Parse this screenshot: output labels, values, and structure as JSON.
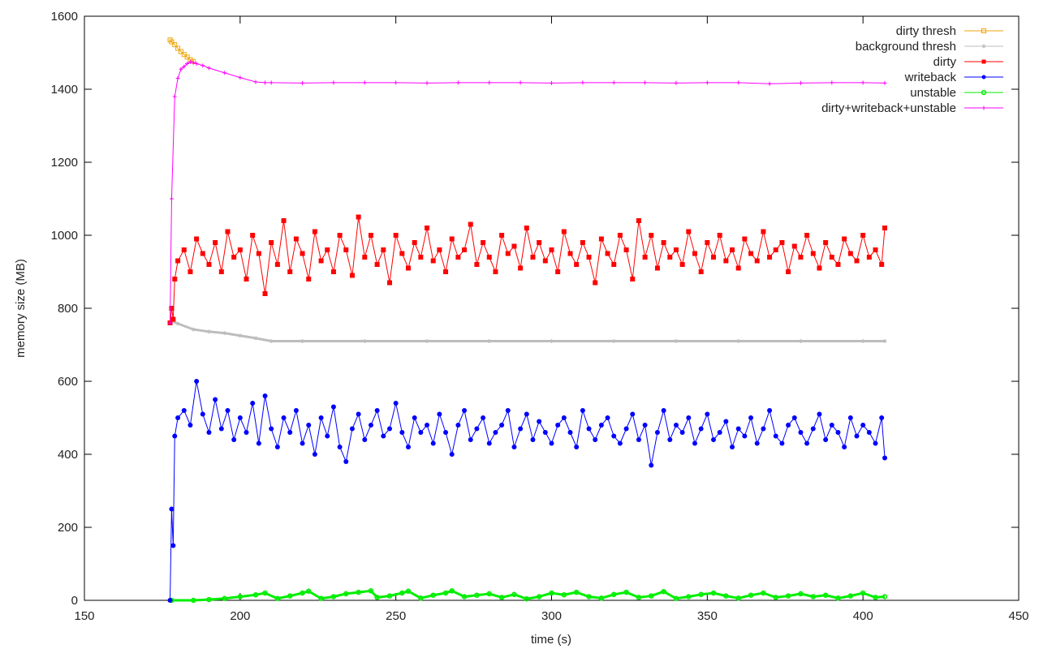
{
  "chart_data": {
    "type": "line",
    "title": "",
    "xlabel": "time (s)",
    "ylabel": "memory size (MB)",
    "xlim": [
      150,
      450
    ],
    "ylim": [
      0,
      1600
    ],
    "xticks": [
      150,
      200,
      250,
      300,
      350,
      400,
      450
    ],
    "yticks": [
      0,
      200,
      400,
      600,
      800,
      1000,
      1200,
      1400,
      1600
    ],
    "grid": false,
    "legend_position": "top-right",
    "series": [
      {
        "name": "dirty thresh",
        "color": "#f0a30a",
        "marker": "square-open",
        "x": [
          177.5,
          178,
          179,
          180,
          181,
          182,
          183,
          184,
          185
        ],
        "y": [
          1535,
          1530,
          1522,
          1512,
          1503,
          1495,
          1488,
          1481,
          1476
        ]
      },
      {
        "name": "background thresh",
        "color": "#bdbdbd",
        "marker": "asterisk",
        "x": [
          178,
          180,
          185,
          190,
          195,
          200,
          205,
          210,
          220,
          240,
          260,
          280,
          300,
          320,
          340,
          360,
          380,
          400,
          407
        ],
        "y": [
          765,
          758,
          742,
          736,
          732,
          725,
          718,
          710,
          710,
          710,
          710,
          710,
          710,
          710,
          710,
          710,
          710,
          710,
          710
        ]
      },
      {
        "name": "dirty",
        "color": "#ff0000",
        "marker": "square-filled",
        "x": [
          177.5,
          178,
          178.5,
          179,
          180,
          182,
          184,
          186,
          188,
          190,
          192,
          194,
          196,
          198,
          200,
          202,
          204,
          206,
          208,
          210,
          212,
          214,
          216,
          218,
          220,
          222,
          224,
          226,
          228,
          230,
          232,
          234,
          236,
          238,
          240,
          242,
          244,
          246,
          248,
          250,
          252,
          254,
          256,
          258,
          260,
          262,
          264,
          266,
          268,
          270,
          272,
          274,
          276,
          278,
          280,
          282,
          284,
          286,
          288,
          290,
          292,
          294,
          296,
          298,
          300,
          302,
          304,
          306,
          308,
          310,
          312,
          314,
          316,
          318,
          320,
          322,
          324,
          326,
          328,
          330,
          332,
          334,
          336,
          338,
          340,
          342,
          344,
          346,
          348,
          350,
          352,
          354,
          356,
          358,
          360,
          362,
          364,
          366,
          368,
          370,
          372,
          374,
          376,
          378,
          380,
          382,
          384,
          386,
          388,
          390,
          392,
          394,
          396,
          398,
          400,
          402,
          404,
          406,
          407
        ],
        "y": [
          760,
          800,
          770,
          880,
          930,
          960,
          900,
          990,
          950,
          920,
          980,
          900,
          1010,
          940,
          960,
          880,
          1000,
          950,
          840,
          980,
          920,
          1040,
          900,
          990,
          950,
          880,
          1010,
          930,
          960,
          900,
          1000,
          960,
          890,
          1050,
          940,
          1000,
          920,
          960,
          870,
          1000,
          950,
          910,
          980,
          940,
          1020,
          930,
          960,
          900,
          990,
          940,
          960,
          1030,
          920,
          980,
          940,
          900,
          1000,
          950,
          970,
          910,
          1020,
          940,
          980,
          930,
          960,
          900,
          1010,
          950,
          920,
          980,
          940,
          870,
          990,
          950,
          920,
          1000,
          960,
          880,
          1040,
          940,
          1000,
          910,
          980,
          940,
          960,
          920,
          1010,
          950,
          900,
          980,
          940,
          1000,
          930,
          960,
          910,
          990,
          950,
          930,
          1010,
          940,
          960,
          980,
          900,
          970,
          940,
          1000,
          950,
          910,
          980,
          940,
          920,
          990,
          950,
          930,
          1000,
          940,
          960,
          920,
          1020
        ]
      },
      {
        "name": "writeback",
        "color": "#0000ff",
        "marker": "circle-filled",
        "x": [
          177.5,
          178,
          178.5,
          179,
          180,
          182,
          184,
          186,
          188,
          190,
          192,
          194,
          196,
          198,
          200,
          202,
          204,
          206,
          208,
          210,
          212,
          214,
          216,
          218,
          220,
          222,
          224,
          226,
          228,
          230,
          232,
          234,
          236,
          238,
          240,
          242,
          244,
          246,
          248,
          250,
          252,
          254,
          256,
          258,
          260,
          262,
          264,
          266,
          268,
          270,
          272,
          274,
          276,
          278,
          280,
          282,
          284,
          286,
          288,
          290,
          292,
          294,
          296,
          298,
          300,
          302,
          304,
          306,
          308,
          310,
          312,
          314,
          316,
          318,
          320,
          322,
          324,
          326,
          328,
          330,
          332,
          334,
          336,
          338,
          340,
          342,
          344,
          346,
          348,
          350,
          352,
          354,
          356,
          358,
          360,
          362,
          364,
          366,
          368,
          370,
          372,
          374,
          376,
          378,
          380,
          382,
          384,
          386,
          388,
          390,
          392,
          394,
          396,
          398,
          400,
          402,
          404,
          406,
          407
        ],
        "y": [
          0,
          250,
          150,
          450,
          500,
          520,
          480,
          600,
          510,
          460,
          550,
          470,
          520,
          440,
          500,
          460,
          540,
          430,
          560,
          470,
          420,
          500,
          460,
          520,
          430,
          480,
          400,
          500,
          450,
          530,
          420,
          380,
          470,
          510,
          440,
          480,
          520,
          450,
          470,
          540,
          460,
          420,
          500,
          460,
          480,
          430,
          510,
          460,
          400,
          480,
          520,
          440,
          470,
          500,
          430,
          460,
          480,
          520,
          420,
          470,
          510,
          440,
          490,
          460,
          430,
          480,
          500,
          460,
          420,
          520,
          470,
          440,
          480,
          500,
          450,
          430,
          470,
          510,
          440,
          480,
          370,
          460,
          520,
          440,
          480,
          460,
          500,
          430,
          470,
          510,
          440,
          460,
          490,
          420,
          470,
          450,
          500,
          430,
          470,
          520,
          450,
          430,
          480,
          500,
          460,
          430,
          470,
          510,
          440,
          480,
          460,
          420,
          500,
          450,
          480,
          460,
          430,
          500,
          390
        ]
      },
      {
        "name": "unstable",
        "color": "#00ee00",
        "marker": "circle-open",
        "x": [
          178,
          185,
          190,
          195,
          200,
          205,
          208,
          212,
          216,
          220,
          222,
          226,
          230,
          234,
          238,
          242,
          244,
          248,
          252,
          254,
          258,
          262,
          266,
          268,
          272,
          276,
          280,
          284,
          288,
          292,
          296,
          300,
          304,
          308,
          312,
          316,
          320,
          324,
          328,
          332,
          336,
          340,
          344,
          348,
          352,
          356,
          360,
          364,
          368,
          372,
          376,
          380,
          384,
          388,
          392,
          396,
          400,
          404,
          407
        ],
        "y": [
          0,
          0,
          2,
          5,
          10,
          15,
          20,
          5,
          12,
          20,
          25,
          5,
          10,
          18,
          22,
          26,
          8,
          12,
          20,
          25,
          6,
          14,
          20,
          26,
          10,
          14,
          18,
          8,
          16,
          4,
          10,
          20,
          15,
          22,
          10,
          6,
          16,
          22,
          8,
          12,
          24,
          5,
          10,
          16,
          20,
          12,
          6,
          14,
          20,
          8,
          12,
          18,
          10,
          14,
          6,
          12,
          20,
          8,
          10
        ]
      },
      {
        "name": "dirty+writeback+unstable",
        "color": "#ff00ff",
        "marker": "plus",
        "x": [
          177.5,
          178,
          179,
          180,
          181,
          182,
          183,
          184,
          185,
          186,
          188,
          190,
          195,
          200,
          205,
          208,
          210,
          220,
          230,
          240,
          250,
          260,
          270,
          280,
          290,
          300,
          310,
          320,
          330,
          340,
          350,
          360,
          370,
          380,
          390,
          400,
          407
        ],
        "y": [
          760,
          1100,
          1380,
          1430,
          1455,
          1462,
          1470,
          1475,
          1473,
          1470,
          1465,
          1458,
          1445,
          1432,
          1420,
          1418,
          1418,
          1417,
          1418,
          1418,
          1418,
          1417,
          1418,
          1418,
          1418,
          1417,
          1418,
          1418,
          1418,
          1417,
          1418,
          1418,
          1415,
          1417,
          1418,
          1418,
          1417
        ]
      }
    ]
  }
}
